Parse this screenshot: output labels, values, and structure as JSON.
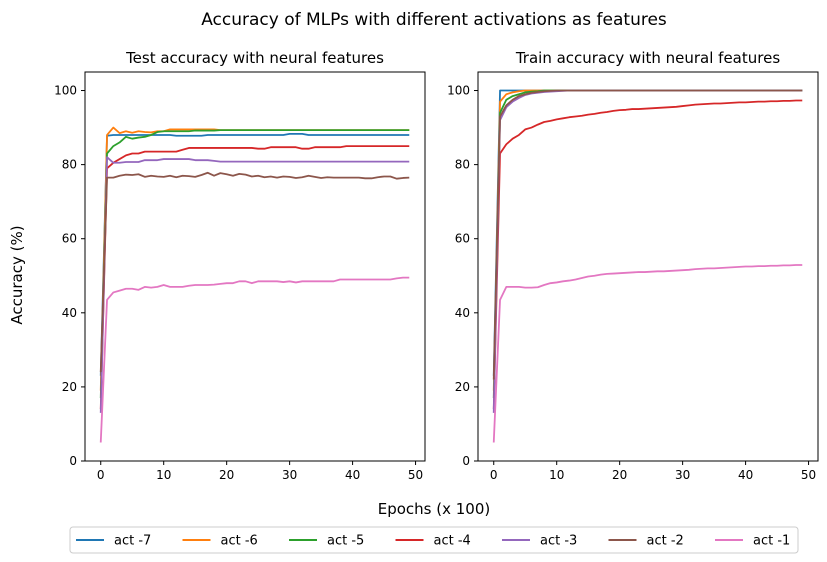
{
  "figure": {
    "suptitle": "Accuracy of MLPs with different activations as features",
    "xlabel": "Epochs (x 100)",
    "ylabel": "Accuracy (%)",
    "legend_position": "bottom-center",
    "legend": [
      {
        "name": "act -7",
        "color": "#1f77b4"
      },
      {
        "name": "act -6",
        "color": "#ff7f0e"
      },
      {
        "name": "act -5",
        "color": "#2ca02c"
      },
      {
        "name": "act -4",
        "color": "#d62728"
      },
      {
        "name": "act -3",
        "color": "#9467bd"
      },
      {
        "name": "act -2",
        "color": "#8c564b"
      },
      {
        "name": "act -1",
        "color": "#e377c2"
      }
    ]
  },
  "chart_data": [
    {
      "type": "line",
      "title": "Test accuracy with neural features",
      "xlim": [
        -2.5,
        51.5
      ],
      "ylim": [
        0,
        105
      ],
      "xticks": [
        0,
        10,
        20,
        30,
        40,
        50
      ],
      "yticks": [
        0,
        20,
        40,
        60,
        80,
        100
      ],
      "grid": false,
      "series": [
        {
          "name": "act -7",
          "color": "#1f77b4",
          "values": [
            23,
            87.8,
            88,
            88,
            88,
            88,
            88,
            88,
            88,
            88,
            88,
            88,
            87.8,
            87.8,
            87.8,
            87.8,
            87.8,
            88,
            88,
            88,
            88,
            88,
            88,
            88,
            88,
            88,
            88,
            88,
            88,
            88,
            88.3,
            88.3,
            88.3,
            88,
            88,
            88,
            88,
            88,
            88,
            88,
            88,
            88,
            88,
            88,
            88,
            88,
            88,
            88,
            88,
            88
          ]
        },
        {
          "name": "act -6",
          "color": "#ff7f0e",
          "values": [
            19,
            88,
            90,
            88.5,
            89,
            88.6,
            89,
            88.8,
            88.7,
            89,
            89,
            89.5,
            89.5,
            89.5,
            89.5,
            89.5,
            89.5,
            89.5,
            89.5,
            89.3,
            89.3,
            89.3,
            89.3,
            89.3,
            89.3,
            89.3,
            89.3,
            89.3,
            89.3,
            89.3,
            89.3,
            89.3,
            89.3,
            89.3,
            89.3,
            89.3,
            89.3,
            89.3,
            89.3,
            89.3,
            89.3,
            89.3,
            89.3,
            89.3,
            89.3,
            89.3,
            89.3,
            89.3,
            89.3,
            89.3
          ]
        },
        {
          "name": "act -5",
          "color": "#2ca02c",
          "values": [
            17,
            83,
            85,
            86,
            87.5,
            87,
            87.3,
            87.5,
            88,
            88.8,
            89,
            89,
            89,
            89,
            89,
            89.2,
            89.2,
            89.2,
            89.2,
            89.3,
            89.3,
            89.3,
            89.3,
            89.3,
            89.3,
            89.3,
            89.3,
            89.3,
            89.3,
            89.3,
            89.3,
            89.3,
            89.3,
            89.3,
            89.3,
            89.3,
            89.3,
            89.3,
            89.3,
            89.3,
            89.3,
            89.3,
            89.3,
            89.3,
            89.3,
            89.3,
            89.3,
            89.3,
            89.3,
            89.3
          ]
        },
        {
          "name": "act -4",
          "color": "#d62728",
          "values": [
            14,
            79,
            80.5,
            81.5,
            82.5,
            83,
            83,
            83.5,
            83.5,
            83.5,
            83.5,
            83.5,
            83.5,
            84,
            84.5,
            84.5,
            84.5,
            84.5,
            84.5,
            84.5,
            84.5,
            84.5,
            84.5,
            84.5,
            84.5,
            84.3,
            84.3,
            84.7,
            84.7,
            84.7,
            84.7,
            84.7,
            84.3,
            84.3,
            84.7,
            84.7,
            84.7,
            84.7,
            84.7,
            85,
            85,
            85,
            85,
            85,
            85,
            85,
            85,
            85,
            85,
            85
          ]
        },
        {
          "name": "act -3",
          "color": "#9467bd",
          "values": [
            13,
            82,
            80.5,
            80.5,
            80.7,
            80.7,
            80.7,
            81.2,
            81.2,
            81.2,
            81.5,
            81.5,
            81.5,
            81.5,
            81.5,
            81.2,
            81.2,
            81.2,
            81,
            80.8,
            80.8,
            80.8,
            80.8,
            80.8,
            80.8,
            80.8,
            80.8,
            80.8,
            80.8,
            80.8,
            80.8,
            80.8,
            80.8,
            80.8,
            80.8,
            80.8,
            80.8,
            80.8,
            80.8,
            80.8,
            80.8,
            80.8,
            80.8,
            80.8,
            80.8,
            80.8,
            80.8,
            80.8,
            80.8,
            80.8
          ]
        },
        {
          "name": "act -2",
          "color": "#8c564b",
          "values": [
            24,
            76.5,
            76.5,
            77,
            77.3,
            77.2,
            77.4,
            76.7,
            77,
            76.8,
            76.7,
            77,
            76.6,
            77,
            76.9,
            76.7,
            77.2,
            77.8,
            77,
            77.7,
            77.4,
            77,
            77.5,
            77.3,
            76.8,
            77,
            76.6,
            76.8,
            76.5,
            76.8,
            76.7,
            76.4,
            76.6,
            77,
            76.7,
            76.4,
            76.6,
            76.5,
            76.5,
            76.5,
            76.5,
            76.5,
            76.3,
            76.3,
            76.6,
            76.8,
            76.8,
            76.2,
            76.4,
            76.5
          ]
        },
        {
          "name": "act -1",
          "color": "#e377c2",
          "values": [
            5,
            43.5,
            45.5,
            46,
            46.5,
            46.5,
            46.2,
            47,
            46.8,
            47,
            47.5,
            47,
            47,
            47,
            47.3,
            47.5,
            47.5,
            47.5,
            47.6,
            47.8,
            48,
            48,
            48.5,
            48.5,
            48,
            48.5,
            48.5,
            48.5,
            48.5,
            48.3,
            48.5,
            48.2,
            48.5,
            48.5,
            48.5,
            48.5,
            48.5,
            48.5,
            49,
            49,
            49,
            49,
            49,
            49,
            49,
            49,
            49,
            49.3,
            49.5,
            49.5
          ]
        }
      ]
    },
    {
      "type": "line",
      "title": "Train accuracy with neural features",
      "xlim": [
        -2.5,
        51.5
      ],
      "ylim": [
        0,
        105
      ],
      "xticks": [
        0,
        10,
        20,
        30,
        40,
        50
      ],
      "yticks": [
        0,
        20,
        40,
        60,
        80,
        100
      ],
      "grid": false,
      "series": [
        {
          "name": "act -7",
          "color": "#1f77b4",
          "values": [
            23,
            100,
            100,
            100,
            100,
            100,
            100,
            100,
            100,
            100,
            100,
            100,
            100,
            100,
            100,
            100,
            100,
            100,
            100,
            100,
            100,
            100,
            100,
            100,
            100,
            100,
            100,
            100,
            100,
            100,
            100,
            100,
            100,
            100,
            100,
            100,
            100,
            100,
            100,
            100,
            100,
            100,
            100,
            100,
            100,
            100,
            100,
            100,
            100,
            100
          ]
        },
        {
          "name": "act -6",
          "color": "#ff7f0e",
          "values": [
            19,
            97,
            99,
            99.5,
            99.8,
            100,
            100,
            100,
            100,
            100,
            100,
            100,
            100,
            100,
            100,
            100,
            100,
            100,
            100,
            100,
            100,
            100,
            100,
            100,
            100,
            100,
            100,
            100,
            100,
            100,
            100,
            100,
            100,
            100,
            100,
            100,
            100,
            100,
            100,
            100,
            100,
            100,
            100,
            100,
            100,
            100,
            100,
            100,
            100,
            100
          ]
        },
        {
          "name": "act -5",
          "color": "#2ca02c",
          "values": [
            17,
            94,
            97.5,
            98.5,
            99,
            99.5,
            99.7,
            99.8,
            100,
            100,
            100,
            100,
            100,
            100,
            100,
            100,
            100,
            100,
            100,
            100,
            100,
            100,
            100,
            100,
            100,
            100,
            100,
            100,
            100,
            100,
            100,
            100,
            100,
            100,
            100,
            100,
            100,
            100,
            100,
            100,
            100,
            100,
            100,
            100,
            100,
            100,
            100,
            100,
            100,
            100
          ]
        },
        {
          "name": "act -4",
          "color": "#d62728",
          "values": [
            14,
            83,
            85.5,
            87,
            88,
            89.5,
            90,
            90.8,
            91.5,
            91.8,
            92.2,
            92.5,
            92.8,
            93,
            93.2,
            93.5,
            93.7,
            94,
            94.2,
            94.5,
            94.7,
            94.8,
            95,
            95,
            95.1,
            95.2,
            95.3,
            95.4,
            95.5,
            95.6,
            95.8,
            96,
            96.2,
            96.3,
            96.4,
            96.5,
            96.5,
            96.6,
            96.7,
            96.8,
            96.8,
            96.9,
            97,
            97,
            97.1,
            97.1,
            97.2,
            97.2,
            97.3,
            97.3
          ]
        },
        {
          "name": "act -3",
          "color": "#9467bd",
          "values": [
            13,
            92,
            95.5,
            97,
            98,
            98.8,
            99.2,
            99.4,
            99.6,
            99.7,
            99.8,
            99.9,
            100,
            100,
            100,
            100,
            100,
            100,
            100,
            100,
            100,
            100,
            100,
            100,
            100,
            100,
            100,
            100,
            100,
            100,
            100,
            100,
            100,
            100,
            100,
            100,
            100,
            100,
            100,
            100,
            100,
            100,
            100,
            100,
            100,
            100,
            100,
            100,
            100,
            100
          ]
        },
        {
          "name": "act -2",
          "color": "#8c564b",
          "values": [
            22,
            93,
            96,
            97.5,
            98.5,
            99,
            99.4,
            99.6,
            99.8,
            99.9,
            100,
            100,
            100,
            100,
            100,
            100,
            100,
            100,
            100,
            100,
            100,
            100,
            100,
            100,
            100,
            100,
            100,
            100,
            100,
            100,
            100,
            100,
            100,
            100,
            100,
            100,
            100,
            100,
            100,
            100,
            100,
            100,
            100,
            100,
            100,
            100,
            100,
            100,
            100,
            100
          ]
        },
        {
          "name": "act -1",
          "color": "#e377c2",
          "values": [
            5,
            43.5,
            47,
            47,
            47,
            46.8,
            46.8,
            46.9,
            47.5,
            48,
            48.2,
            48.5,
            48.7,
            49,
            49.4,
            49.8,
            50,
            50.3,
            50.5,
            50.6,
            50.7,
            50.8,
            50.9,
            51,
            51,
            51.1,
            51.2,
            51.2,
            51.3,
            51.4,
            51.5,
            51.6,
            51.8,
            51.9,
            52,
            52,
            52.1,
            52.2,
            52.3,
            52.4,
            52.5,
            52.5,
            52.6,
            52.6,
            52.7,
            52.7,
            52.8,
            52.8,
            52.9,
            52.9
          ]
        }
      ]
    }
  ]
}
